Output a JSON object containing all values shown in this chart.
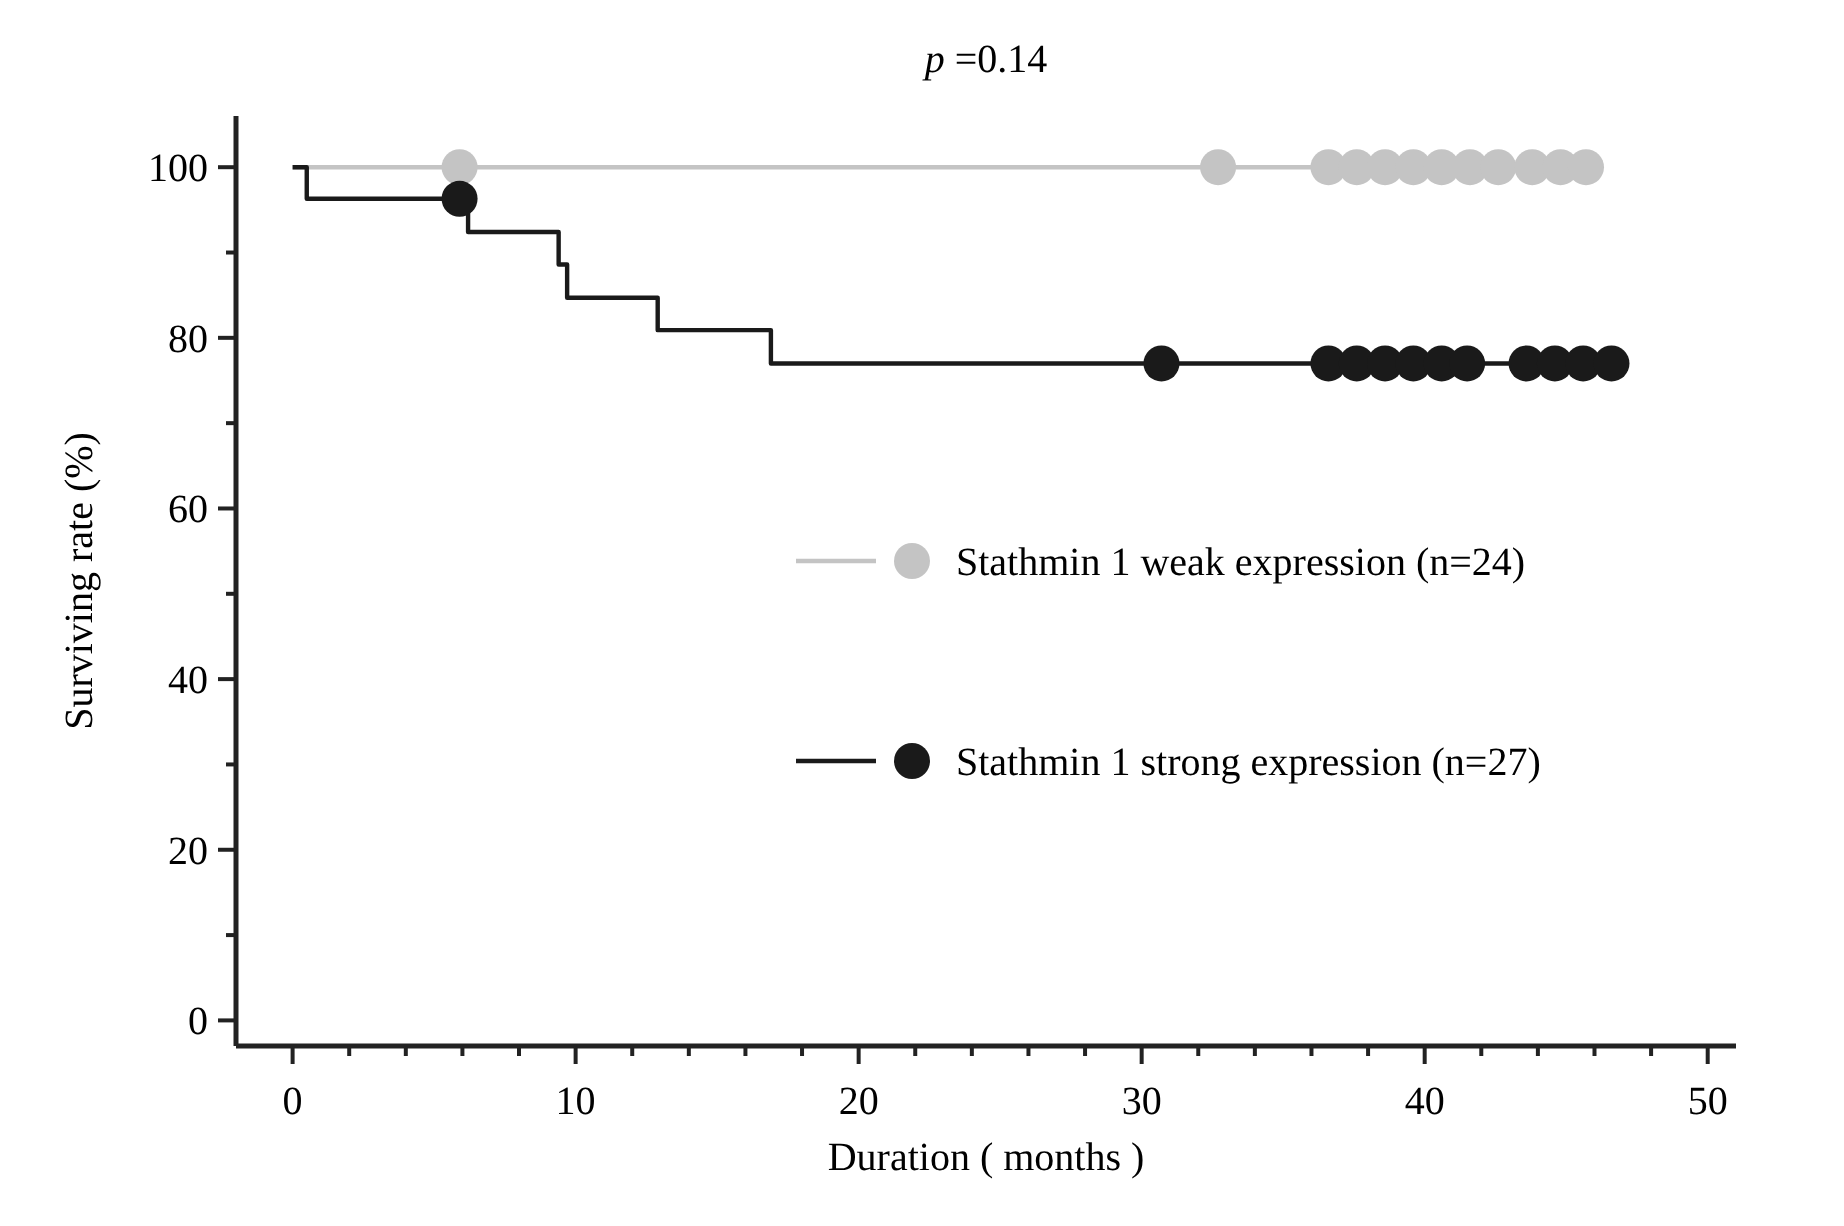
{
  "chart_data": {
    "type": "step",
    "title": "p =0.14",
    "xlabel": "Duration ( months )",
    "ylabel": "Surviving rate  (%)",
    "xlim": [
      -2,
      51
    ],
    "ylim": [
      -3,
      106
    ],
    "xticks": [
      0,
      {
        "value": 2,
        "label": null
      },
      {
        "value": 4,
        "label": null
      },
      {
        "value": 6,
        "label": null
      },
      {
        "value": 8,
        "label": null
      },
      10,
      {
        "value": 12,
        "label": null
      },
      {
        "value": 14,
        "label": null
      },
      {
        "value": 16,
        "label": null
      },
      {
        "value": 18,
        "label": null
      },
      20,
      {
        "value": 22,
        "label": null
      },
      {
        "value": 24,
        "label": null
      },
      {
        "value": 26,
        "label": null
      },
      {
        "value": 28,
        "label": null
      },
      30,
      {
        "value": 32,
        "label": null
      },
      {
        "value": 34,
        "label": null
      },
      {
        "value": 36,
        "label": null
      },
      {
        "value": 38,
        "label": null
      },
      40,
      {
        "value": 42,
        "label": null
      },
      {
        "value": 44,
        "label": null
      },
      {
        "value": 46,
        "label": null
      },
      {
        "value": 48,
        "label": null
      },
      50
    ],
    "yticks": [
      0,
      {
        "value": 10,
        "label": null
      },
      20,
      {
        "value": 30,
        "label": null
      },
      40,
      {
        "value": 50,
        "label": null
      },
      60,
      {
        "value": 70,
        "label": null
      },
      80,
      {
        "value": 90,
        "label": null
      },
      100
    ],
    "grid": false,
    "legend": "right",
    "series": [
      {
        "name": "Stathmin 1  weak expression (n=24)",
        "color": "#c4c4c4",
        "x": [
          0,
          45.7
        ],
        "values": [
          100,
          100
        ]
      },
      {
        "type": "scatter",
        "color": "#c4c4c4",
        "marker": "circle",
        "x": [
          5.9,
          32.7,
          36.6,
          37.6,
          38.6,
          39.6,
          40.6,
          41.6,
          42.6,
          43.8,
          44.8,
          45.7
        ],
        "values": [
          100,
          100,
          100,
          100,
          100,
          100,
          100,
          100,
          100,
          100,
          100,
          100
        ]
      },
      {
        "name": "Stathmin 1  strong expression (n=27)",
        "color": "#1a1a1a",
        "x": [
          0,
          0.5,
          6.2,
          9.4,
          9.7,
          12.9,
          16.9,
          46.6
        ],
        "values": [
          100,
          96.3,
          92.4,
          88.6,
          84.7,
          80.9,
          77.0,
          77.0
        ]
      },
      {
        "type": "scatter",
        "color": "#1a1a1a",
        "marker": "circle",
        "x": [
          5.9,
          30.7,
          36.6,
          37.6,
          38.6,
          39.6,
          40.6,
          41.5,
          43.6,
          44.6,
          45.6,
          46.6
        ],
        "values": [
          96.3,
          77.0,
          77.0,
          77.0,
          77.0,
          77.0,
          77.0,
          77.0,
          77.0,
          77.0,
          77.0,
          77.0
        ]
      }
    ]
  }
}
